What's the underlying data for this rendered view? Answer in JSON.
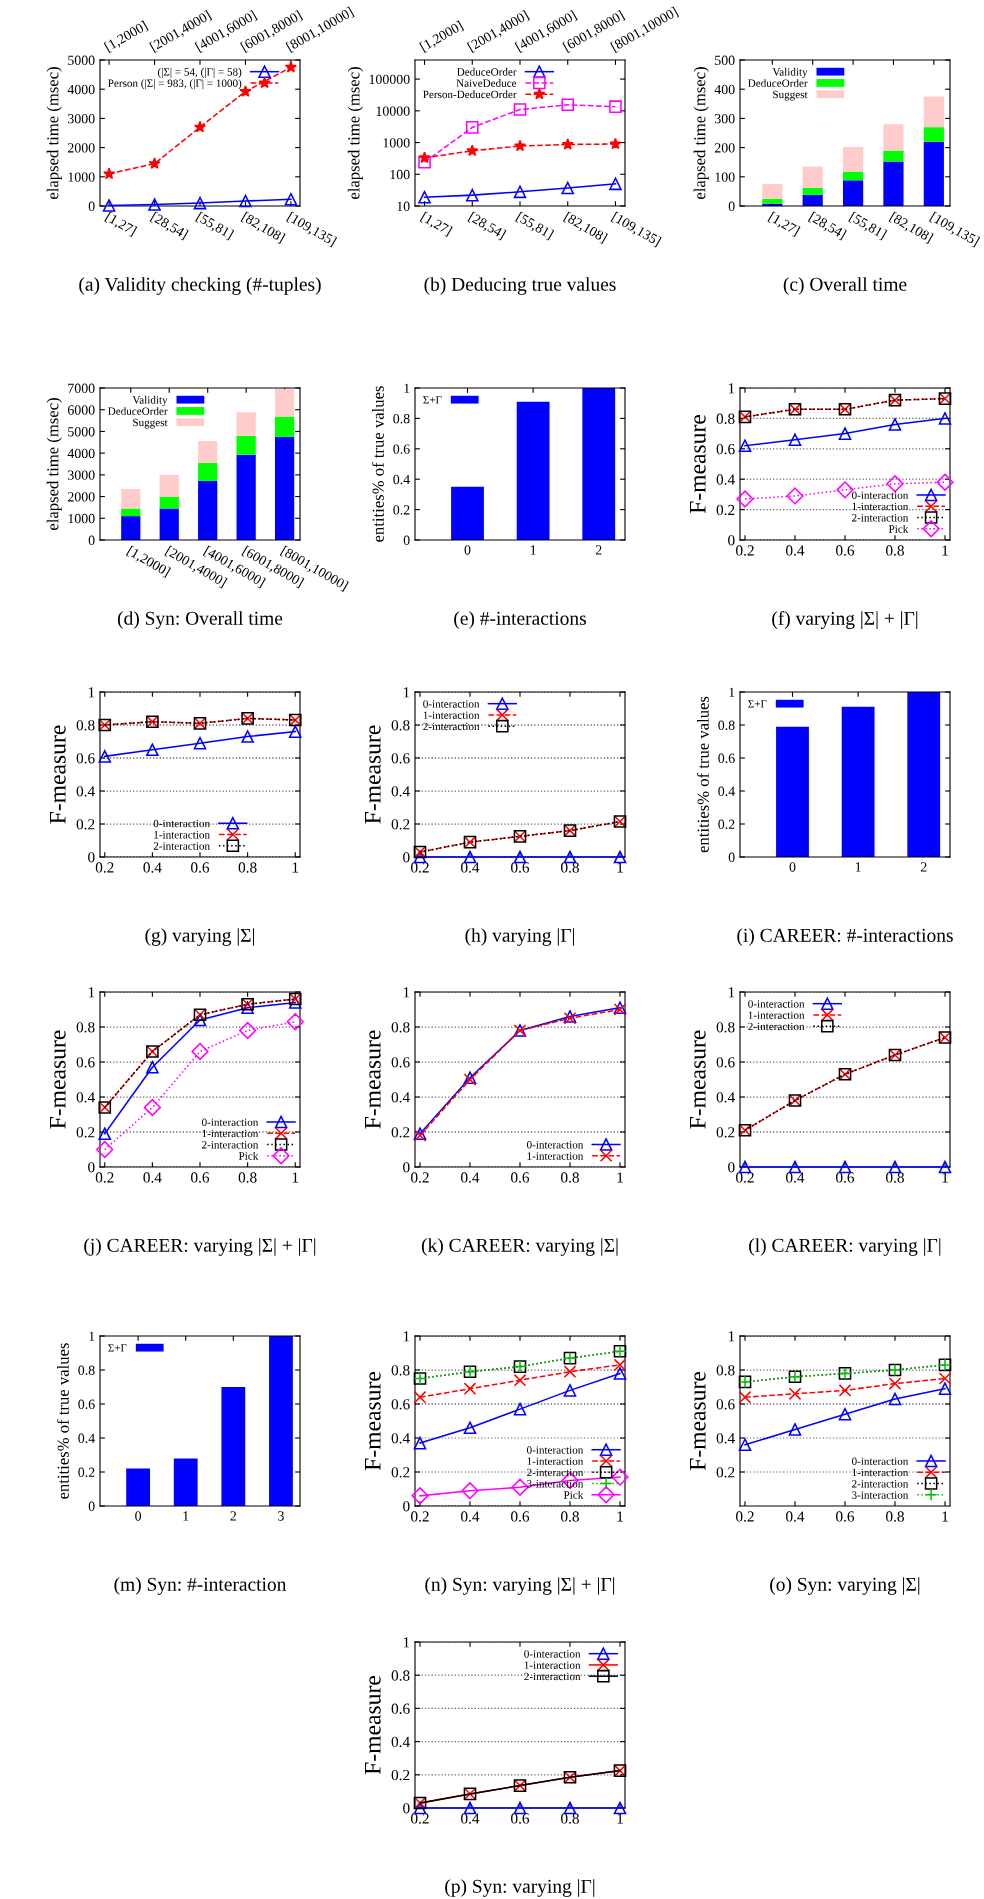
{
  "chart_data": [
    {
      "type": "line",
      "title": "(a) Validity checking (#-tuples)",
      "ylabel": "elapsed time (msec)",
      "categories": [
        "[1,27]",
        "[28,54]",
        "[55,81]",
        "[82,108]",
        "[109,135]"
      ],
      "annotations": [
        "[1,2000]",
        "[2001,4000]",
        "[4001,6000]",
        "[6001,8000]",
        "[8001,10000]"
      ],
      "ylim": [
        0,
        5000
      ],
      "yticks": [
        0,
        1000,
        2000,
        3000,
        4000,
        5000
      ],
      "legend": "top left",
      "series": [
        {
          "name": "(|Σ| = 54, (|Γ| = 58)",
          "color": "#0000ff",
          "marker": "triangle",
          "line_style": "solid",
          "values": [
            20,
            50,
            100,
            170,
            230
          ]
        },
        {
          "name": "Person (|Σ| = 983, (|Γ| = 1000)",
          "color": "#ff0000",
          "marker": "star",
          "line_style": "dashed",
          "values": [
            1100,
            1450,
            2700,
            3920,
            4750
          ]
        }
      ]
    },
    {
      "type": "line",
      "title": "(b) Deducing true values",
      "ylabel": "elapsed time (msec)",
      "categories": [
        "[1,27]",
        "[28,54]",
        "[55,81]",
        "[82,108]",
        "[109,135]"
      ],
      "annotations": [
        "[1,2000]",
        "[2001,4000]",
        "[4001,6000]",
        "[6001,8000]",
        "[8001,10000]"
      ],
      "log": true,
      "ylim": [
        10,
        400000
      ],
      "yticks": [
        10,
        100,
        1000,
        10000,
        100000
      ],
      "legend": "top left",
      "series": [
        {
          "name": "DeduceOrder",
          "color": "#0000ff",
          "marker": "triangle",
          "line_style": "solid",
          "values": [
            19,
            22,
            28,
            37,
            50
          ]
        },
        {
          "name": "NaiveDeduce",
          "color": "#ff00ff",
          "marker": "square",
          "line_style": "dashed",
          "values": [
            240,
            3000,
            11000,
            15500,
            13500
          ]
        },
        {
          "name": "Person-DeduceOrder",
          "color": "#ff0000",
          "marker": "star",
          "line_style": "dashed",
          "values": [
            330,
            550,
            780,
            870,
            900
          ]
        }
      ]
    },
    {
      "type": "bar",
      "stacked": true,
      "title": "(c) Overall time",
      "ylabel": "elapsed time (msec)",
      "categories": [
        "[1,27]",
        "[28,54]",
        "[55,81]",
        "[82,108]",
        "[109,135]"
      ],
      "ylim": [
        0,
        500
      ],
      "yticks": [
        0,
        100,
        200,
        300,
        400,
        500
      ],
      "legend": "top left",
      "series": [
        {
          "name": "Validity",
          "color": "#0000ff",
          "values": [
            8,
            38,
            88,
            152,
            220
          ]
        },
        {
          "name": "DeduceOrder",
          "color": "#00ff00",
          "values": [
            17,
            24,
            30,
            38,
            50
          ]
        },
        {
          "name": "Suggest",
          "color": "#ffcccc",
          "values": [
            50,
            73,
            84,
            90,
            105
          ]
        }
      ]
    },
    {
      "type": "bar",
      "stacked": true,
      "title": "(d) Syn: Overall time",
      "ylabel": "elapsed time (msec)",
      "categories": [
        "[1,2000]",
        "[2001,4000]",
        "[4001,6000]",
        "[6001,8000]",
        "[8001,10000]"
      ],
      "ylim": [
        0,
        7000
      ],
      "yticks": [
        0,
        1000,
        2000,
        3000,
        4000,
        5000,
        6000,
        7000
      ],
      "legend": "top left",
      "series": [
        {
          "name": "Validity",
          "color": "#0000ff",
          "values": [
            1100,
            1450,
            2720,
            3930,
            4750
          ]
        },
        {
          "name": "DeduceOrder",
          "color": "#00ff00",
          "values": [
            350,
            550,
            830,
            870,
            930
          ]
        },
        {
          "name": "Suggest",
          "color": "#ffcccc",
          "values": [
            900,
            1000,
            1000,
            1080,
            1270
          ]
        }
      ]
    },
    {
      "type": "bar",
      "title": "(e) #-interactions",
      "ylabel": "entities% of true values",
      "categories": [
        "0",
        "1",
        "2"
      ],
      "ylim": [
        0,
        1
      ],
      "yticks": [
        0,
        0.2,
        0.4,
        0.6,
        0.8,
        1
      ],
      "legend": "top left",
      "series": [
        {
          "name": "Σ+Γ",
          "color": "#0000ff",
          "values": [
            0.35,
            0.91,
            1.0
          ]
        }
      ]
    },
    {
      "type": "line",
      "title": "(f) varying |Σ| + |Γ|",
      "ylabel": "F-measure",
      "x": [
        0.2,
        0.4,
        0.6,
        0.8,
        1
      ],
      "xlim": [
        0.18,
        1.02
      ],
      "xticks": [
        0.2,
        0.4,
        0.6,
        0.8,
        1
      ],
      "ylim": [
        0,
        1
      ],
      "yticks": [
        0,
        0.2,
        0.4,
        0.6,
        0.8,
        1
      ],
      "grid": "y",
      "legend": "bottom right",
      "series": [
        {
          "name": "0-interaction",
          "color": "#0000ff",
          "marker": "triangle",
          "line_style": "solid",
          "values": [
            0.62,
            0.66,
            0.7,
            0.76,
            0.8
          ]
        },
        {
          "name": "1-interaction",
          "color": "#ff0000",
          "marker": "cross",
          "line_style": "dashed",
          "values": [
            0.81,
            0.86,
            0.86,
            0.92,
            0.93
          ]
        },
        {
          "name": "2-interaction",
          "color": "#000000",
          "marker": "square",
          "line_style": "dotted",
          "values": [
            0.81,
            0.86,
            0.86,
            0.92,
            0.93
          ]
        },
        {
          "name": "Pick",
          "color": "#ff00ff",
          "marker": "diamond",
          "line_style": "dotted",
          "values": [
            0.27,
            0.29,
            0.33,
            0.37,
            0.38
          ]
        }
      ]
    },
    {
      "type": "line",
      "title": "(g) varying |Σ|",
      "ylabel": "F-measure",
      "x": [
        0.2,
        0.4,
        0.6,
        0.8,
        1
      ],
      "xlim": [
        0.18,
        1.02
      ],
      "xticks": [
        0.2,
        0.4,
        0.6,
        0.8,
        1
      ],
      "ylim": [
        0,
        1
      ],
      "yticks": [
        0,
        0.2,
        0.4,
        0.6,
        0.8,
        1
      ],
      "grid": "y",
      "legend": "bottom",
      "series": [
        {
          "name": "0-interaction",
          "color": "#0000ff",
          "marker": "triangle",
          "line_style": "solid",
          "values": [
            0.61,
            0.65,
            0.69,
            0.73,
            0.76
          ]
        },
        {
          "name": "1-interaction",
          "color": "#ff0000",
          "marker": "cross",
          "line_style": "dashed",
          "values": [
            0.8,
            0.82,
            0.81,
            0.84,
            0.83
          ]
        },
        {
          "name": "2-interaction",
          "color": "#000000",
          "marker": "square",
          "line_style": "dotted",
          "values": [
            0.8,
            0.82,
            0.81,
            0.84,
            0.83
          ]
        }
      ]
    },
    {
      "type": "line",
      "title": "(h) varying |Γ|",
      "ylabel": "F-measure",
      "x": [
        0.2,
        0.4,
        0.6,
        0.8,
        1
      ],
      "xlim": [
        0.18,
        1.02
      ],
      "xticks": [
        0.2,
        0.4,
        0.6,
        0.8,
        1
      ],
      "ylim": [
        0,
        1
      ],
      "yticks": [
        0,
        0.2,
        0.4,
        0.6,
        0.8,
        1
      ],
      "grid": "y",
      "legend": "top left",
      "series": [
        {
          "name": "0-interaction",
          "color": "#0000ff",
          "marker": "triangle",
          "line_style": "solid",
          "values": [
            0,
            0,
            0,
            0,
            0
          ]
        },
        {
          "name": "1-interaction",
          "color": "#ff0000",
          "marker": "cross",
          "line_style": "dashed",
          "values": [
            0.03,
            0.09,
            0.125,
            0.16,
            0.215
          ]
        },
        {
          "name": "2-interaction",
          "color": "#000000",
          "marker": "square",
          "line_style": "dotted",
          "values": [
            0.03,
            0.09,
            0.125,
            0.16,
            0.215
          ]
        }
      ]
    },
    {
      "type": "bar",
      "title": "(i) CAREER: #-interactions",
      "ylabel": "entities% of true values",
      "categories": [
        "0",
        "1",
        "2"
      ],
      "ylim": [
        0,
        1
      ],
      "yticks": [
        0,
        0.2,
        0.4,
        0.6,
        0.8,
        1
      ],
      "legend": "top left",
      "series": [
        {
          "name": "Σ+Γ",
          "color": "#0000ff",
          "values": [
            0.79,
            0.91,
            1.0
          ]
        }
      ]
    },
    {
      "type": "line",
      "title": "(j) CAREER: varying |Σ| + |Γ|",
      "ylabel": "F-measure",
      "x": [
        0.2,
        0.4,
        0.6,
        0.8,
        1
      ],
      "xlim": [
        0.18,
        1.02
      ],
      "xticks": [
        0.2,
        0.4,
        0.6,
        0.8,
        1
      ],
      "ylim": [
        0,
        1
      ],
      "yticks": [
        0,
        0.2,
        0.4,
        0.6,
        0.8,
        1
      ],
      "grid": "y",
      "legend": "bottom right",
      "series": [
        {
          "name": "0-interaction",
          "color": "#0000ff",
          "marker": "triangle",
          "line_style": "solid",
          "values": [
            0.19,
            0.57,
            0.84,
            0.91,
            0.94
          ]
        },
        {
          "name": "1-interaction",
          "color": "#ff0000",
          "marker": "cross",
          "line_style": "dashed",
          "values": [
            0.34,
            0.66,
            0.87,
            0.93,
            0.96
          ]
        },
        {
          "name": "2-interaction",
          "color": "#000000",
          "marker": "square",
          "line_style": "dotted",
          "values": [
            0.34,
            0.66,
            0.87,
            0.93,
            0.96
          ]
        },
        {
          "name": "Pick",
          "color": "#ff00ff",
          "marker": "diamond",
          "line_style": "dotted",
          "values": [
            0.1,
            0.34,
            0.66,
            0.78,
            0.83
          ]
        }
      ]
    },
    {
      "type": "line",
      "title": "(k) CAREER: varying |Σ|",
      "ylabel": "F-measure",
      "x": [
        0.2,
        0.4,
        0.6,
        0.8,
        1
      ],
      "xlim": [
        0.18,
        1.02
      ],
      "xticks": [
        0.2,
        0.4,
        0.6,
        0.8,
        1
      ],
      "ylim": [
        0,
        1
      ],
      "yticks": [
        0,
        0.2,
        0.4,
        0.6,
        0.8,
        1
      ],
      "grid": "y",
      "legend": "bottom right",
      "series": [
        {
          "name": "0-interaction",
          "color": "#0000ff",
          "marker": "triangle",
          "line_style": "solid",
          "values": [
            0.19,
            0.51,
            0.78,
            0.86,
            0.91
          ]
        },
        {
          "name": "1-interaction",
          "color": "#ff0000",
          "marker": "cross",
          "line_style": "dashed",
          "values": [
            0.18,
            0.5,
            0.78,
            0.85,
            0.9
          ]
        }
      ]
    },
    {
      "type": "line",
      "title": "(l) CAREER: varying |Γ|",
      "ylabel": "F-measure",
      "x": [
        0.2,
        0.4,
        0.6,
        0.8,
        1
      ],
      "xlim": [
        0.18,
        1.02
      ],
      "xticks": [
        0.2,
        0.4,
        0.6,
        0.8,
        1
      ],
      "ylim": [
        0,
        1
      ],
      "yticks": [
        0,
        0.2,
        0.4,
        0.6,
        0.8,
        1
      ],
      "grid": "y",
      "legend": "top left",
      "series": [
        {
          "name": "0-interaction",
          "color": "#0000ff",
          "marker": "triangle",
          "line_style": "solid",
          "values": [
            0,
            0,
            0,
            0,
            0
          ]
        },
        {
          "name": "1-interaction",
          "color": "#ff0000",
          "marker": "cross",
          "line_style": "dashed",
          "values": [
            0.21,
            0.38,
            0.53,
            0.64,
            0.74
          ]
        },
        {
          "name": "2-interaction",
          "color": "#000000",
          "marker": "square",
          "line_style": "dotted",
          "values": [
            0.21,
            0.38,
            0.53,
            0.64,
            0.74
          ]
        }
      ]
    },
    {
      "type": "bar",
      "title": "(m) Syn: #-interaction",
      "ylabel": "entities% of true values",
      "categories": [
        "0",
        "1",
        "2",
        "3"
      ],
      "ylim": [
        0,
        1
      ],
      "yticks": [
        0,
        0.2,
        0.4,
        0.6,
        0.8,
        1
      ],
      "legend": "top left",
      "series": [
        {
          "name": "Σ+Γ",
          "color": "#0000ff",
          "values": [
            0.22,
            0.28,
            0.7,
            1.0
          ]
        }
      ]
    },
    {
      "type": "line",
      "title": "(n) Syn: varying |Σ| + |Γ|",
      "ylabel": "F-measure",
      "x": [
        0.2,
        0.4,
        0.6,
        0.8,
        1
      ],
      "xlim": [
        0.18,
        1.02
      ],
      "xticks": [
        0.2,
        0.4,
        0.6,
        0.8,
        1
      ],
      "ylim": [
        0,
        1
      ],
      "yticks": [
        0,
        0.2,
        0.4,
        0.6,
        0.8,
        1
      ],
      "grid": "y",
      "legend": "bottom right",
      "series": [
        {
          "name": "0-interaction",
          "color": "#0000ff",
          "marker": "triangle",
          "line_style": "solid",
          "values": [
            0.37,
            0.46,
            0.57,
            0.68,
            0.78
          ]
        },
        {
          "name": "1-interaction",
          "color": "#ff0000",
          "marker": "cross",
          "line_style": "dashed",
          "values": [
            0.64,
            0.69,
            0.74,
            0.79,
            0.83
          ]
        },
        {
          "name": "2-interaction",
          "color": "#000000",
          "marker": "square",
          "line_style": "dotted",
          "values": [
            0.75,
            0.79,
            0.82,
            0.87,
            0.91
          ]
        },
        {
          "name": "3-interaction",
          "color": "#00c000",
          "marker": "plus",
          "line_style": "dotted",
          "values": [
            0.75,
            0.79,
            0.82,
            0.87,
            0.91
          ]
        },
        {
          "name": "Pick",
          "color": "#ff00ff",
          "marker": "diamond",
          "line_style": "solid",
          "values": [
            0.06,
            0.09,
            0.11,
            0.15,
            0.17
          ]
        }
      ]
    },
    {
      "type": "line",
      "title": "(o) Syn: varying |Σ|",
      "ylabel": "F-measure",
      "x": [
        0.2,
        0.4,
        0.6,
        0.8,
        1
      ],
      "xlim": [
        0.18,
        1.02
      ],
      "xticks": [
        0.2,
        0.4,
        0.6,
        0.8,
        1
      ],
      "ylim": [
        0,
        1
      ],
      "yticks": [
        0.2,
        0.4,
        0.6,
        0.8,
        1
      ],
      "grid": "y",
      "legend": "bottom right",
      "series": [
        {
          "name": "0-interaction",
          "color": "#0000ff",
          "marker": "triangle",
          "line_style": "solid",
          "values": [
            0.36,
            0.45,
            0.54,
            0.63,
            0.69
          ]
        },
        {
          "name": "1-interaction",
          "color": "#ff0000",
          "marker": "cross",
          "line_style": "dashed",
          "values": [
            0.64,
            0.66,
            0.68,
            0.72,
            0.75
          ]
        },
        {
          "name": "2-interaction",
          "color": "#000000",
          "marker": "square",
          "line_style": "dotted",
          "values": [
            0.73,
            0.76,
            0.78,
            0.8,
            0.83
          ]
        },
        {
          "name": "3-interaction",
          "color": "#00c000",
          "marker": "plus",
          "line_style": "dotted",
          "values": [
            0.73,
            0.76,
            0.78,
            0.8,
            0.83
          ]
        }
      ]
    },
    {
      "type": "line",
      "title": "(p) Syn: varying |Γ|",
      "ylabel": "F-measure",
      "x": [
        0.2,
        0.4,
        0.6,
        0.8,
        1
      ],
      "xlim": [
        0.18,
        1.02
      ],
      "xticks": [
        0.2,
        0.4,
        0.6,
        0.8,
        1
      ],
      "ylim": [
        0,
        1
      ],
      "yticks": [
        0,
        0.2,
        0.4,
        0.6,
        0.8,
        1
      ],
      "grid": "y",
      "legend": "top right",
      "series": [
        {
          "name": "0-interaction",
          "color": "#0000ff",
          "marker": "triangle",
          "line_style": "solid",
          "values": [
            0,
            0,
            0,
            0,
            0
          ]
        },
        {
          "name": "1-interaction",
          "color": "#ff0000",
          "marker": "cross",
          "line_style": "solid",
          "values": [
            0.03,
            0.085,
            0.135,
            0.185,
            0.225
          ]
        },
        {
          "name": "2-interaction",
          "color": "#000000",
          "marker": "square",
          "line_style": "solid",
          "values": [
            0.03,
            0.085,
            0.135,
            0.185,
            0.225
          ]
        }
      ]
    }
  ]
}
